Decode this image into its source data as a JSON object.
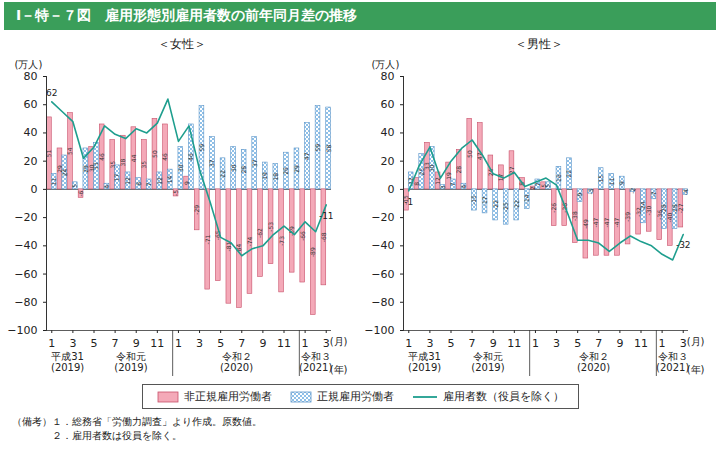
{
  "title": "Ⅰ－特－７図　雇用形態別雇用者数の前年同月差の推移",
  "notes_heading": "（備考）",
  "notes": [
    "１．総務省「労働力調査」より作成。原数値。",
    "２．雇用者数は役員を除く。"
  ],
  "chart_data": [
    {
      "type": "bar",
      "title": "＜女性＞",
      "y_label": "(万人)",
      "x_unit": "(月)",
      "year_unit": "(年)",
      "categories": [
        "1",
        null,
        "3",
        null,
        "5",
        null,
        "7",
        null,
        "9",
        null,
        "11",
        null,
        "1",
        null,
        "3",
        null,
        "5",
        null,
        "7",
        null,
        "9",
        null,
        "11",
        null,
        "1",
        null,
        "3"
      ],
      "year_labels": [
        {
          "text": "平成31",
          "sub": "(2019)",
          "from": 0,
          "to": 3
        },
        {
          "text": "令和元",
          "sub": "(2019)",
          "from": 4,
          "to": 11
        },
        {
          "text": "令和２",
          "sub": "(2020)",
          "from": 12,
          "to": 23
        },
        {
          "text": "令和３",
          "sub": "(2021)",
          "from": 24,
          "to": 26
        }
      ],
      "ylim": [
        -100,
        80
      ],
      "yticks": [
        -100,
        -80,
        -60,
        -40,
        -20,
        0,
        20,
        40,
        60,
        80
      ],
      "grid": false,
      "data_labels": true,
      "series": [
        {
          "name": "非正規雇用労働者",
          "type": "bar",
          "color": "#f4a9b8",
          "values": [
            51,
            29,
            54,
            -6,
            30,
            46,
            35,
            38,
            44,
            35,
            50,
            46,
            -5,
            9,
            -29,
            -71,
            -65,
            -81,
            -84,
            -74,
            -62,
            -53,
            -73,
            -59,
            -66,
            -89,
            -68
          ]
        },
        {
          "name": "正規雇用労働者",
          "type": "bar",
          "color": "#8fc0e8",
          "values": [
            11,
            24,
            5,
            29,
            33,
            4,
            17,
            12,
            8,
            7,
            12,
            14,
            30,
            46,
            59,
            37,
            22,
            30,
            28,
            37,
            19,
            18,
            26,
            29,
            47,
            59,
            58
          ]
        },
        {
          "name": "雇用者数（役員を除く）",
          "type": "line",
          "color": "#1e9e8e",
          "values": [
            62,
            55,
            48,
            22,
            30,
            45,
            39,
            36,
            43,
            40,
            47,
            64,
            34,
            45,
            14,
            -9,
            -34,
            -38,
            -47,
            -42,
            -40,
            -32,
            -26,
            -32,
            -23,
            -30,
            -11
          ],
          "labeled_points": [
            0,
            26
          ]
        }
      ]
    },
    {
      "type": "bar",
      "title": "＜男性＞",
      "y_label": "(万人)",
      "x_unit": "(月)",
      "year_unit": "(年)",
      "categories": [
        "1",
        null,
        "3",
        null,
        "5",
        null,
        "7",
        null,
        "9",
        null,
        "11",
        null,
        "1",
        null,
        "3",
        null,
        "5",
        null,
        "7",
        null,
        "9",
        null,
        "11",
        null,
        "1",
        null,
        "3"
      ],
      "year_labels": [
        {
          "text": "平成31",
          "sub": "(2019)",
          "from": 0,
          "to": 3
        },
        {
          "text": "令和元",
          "sub": "(2019)",
          "from": 4,
          "to": 11
        },
        {
          "text": "令和２",
          "sub": "(2020)",
          "from": 12,
          "to": 23
        },
        {
          "text": "令和３",
          "sub": "(2021)",
          "from": 24,
          "to": 26
        }
      ],
      "ylim": [
        -100,
        80
      ],
      "yticks": [
        -100,
        -80,
        -60,
        -40,
        -20,
        0,
        20,
        40,
        60,
        80
      ],
      "grid": false,
      "data_labels": true,
      "series": [
        {
          "name": "非正規雇用労働者",
          "type": "bar",
          "color": "#f4a9b8",
          "values": [
            -15,
            8,
            33,
            12,
            19,
            28,
            50,
            47,
            24,
            17,
            27,
            8,
            2,
            5,
            -26,
            -26,
            -38,
            -49,
            -47,
            -47,
            -47,
            -39,
            -32,
            -30,
            -36,
            -40,
            -27
          ]
        },
        {
          "name": "正規雇用労働者",
          "type": "bar",
          "color": "#8fc0e8",
          "values": [
            12,
            25,
            30,
            3,
            7,
            4,
            -15,
            -17,
            -22,
            -25,
            -22,
            -14,
            7,
            5,
            16,
            22,
            -9,
            -3,
            15,
            11,
            9,
            -2,
            -24,
            -7,
            -28,
            -28,
            -4
          ]
        },
        {
          "name": "雇用者数（役員を除く）",
          "type": "line",
          "color": "#1e9e8e",
          "values": [
            -1,
            17,
            30,
            8,
            20,
            29,
            35,
            24,
            11,
            8,
            12,
            2,
            5,
            8,
            3,
            -16,
            -36,
            -36,
            -38,
            -44,
            -38,
            -33,
            -37,
            -40,
            -46,
            -50,
            -32
          ],
          "labeled_points": [
            0,
            26
          ]
        }
      ]
    }
  ]
}
